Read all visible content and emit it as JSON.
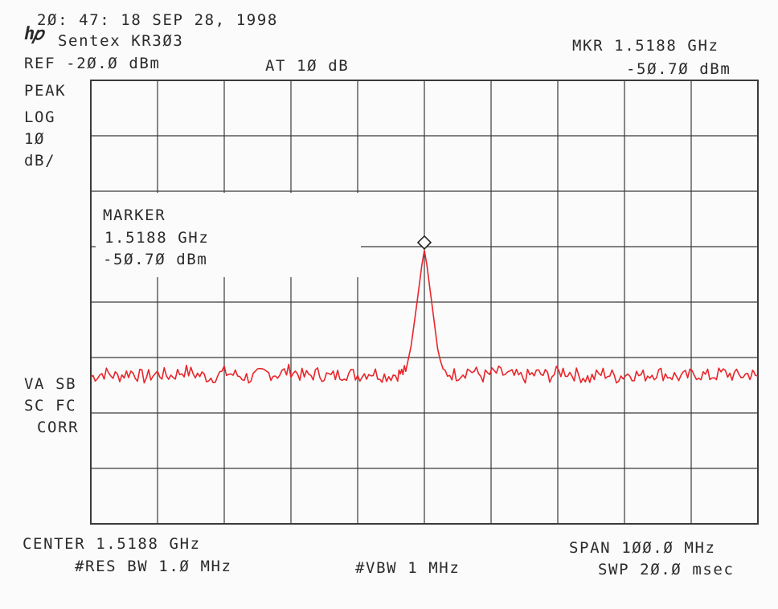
{
  "header": {
    "timestamp": "2Ø: 47: 18 SEP 28, 1998",
    "device_name": "Sentex KR3Ø3",
    "ref_level": "REF -2Ø.Ø dBm",
    "attenuation": "AT 1Ø dB",
    "marker_freq": "MKR 1.5188 GHz",
    "marker_level": "-5Ø.7Ø dBm"
  },
  "left_labels": {
    "detector": "PEAK",
    "scale_type": "LOG",
    "scale_value": "1Ø",
    "scale_unit": "dB/",
    "va_sb": "VA SB",
    "sc_fc": "SC FC",
    "corr": "CORR"
  },
  "marker_box": {
    "title": "MARKER",
    "freq": "1.5188 GHz",
    "level": "-5Ø.7Ø dBm"
  },
  "footer": {
    "center": "CENTER 1.5188 GHz",
    "span": "SPAN 1ØØ.Ø MHz",
    "res_bw": "#RES BW 1.Ø MHz",
    "vbw": "#VBW 1 MHz",
    "sweep": "SWP 2Ø.Ø msec"
  },
  "colors": {
    "trace": "#e8262b",
    "grid": "#3a3a3a",
    "text": "#2a2a2a",
    "background": "#fbfbfb"
  },
  "chart_data": {
    "type": "line",
    "x_unit": "GHz",
    "y_unit": "dBm",
    "xlim": [
      1.4688,
      1.5688
    ],
    "ylim": [
      -100,
      -20
    ],
    "y_scale": "log 10 dB/div",
    "grid": true,
    "divisions": {
      "x": 10,
      "y": 8
    },
    "noise_floor_dbm": -73,
    "series": [
      {
        "points": [
          [
            1.4688,
            -73.5
          ],
          [
            1.4708,
            -72.8
          ],
          [
            1.4728,
            -73.4
          ],
          [
            1.4748,
            -72.6
          ],
          [
            1.4768,
            -73.6
          ],
          [
            1.4788,
            -72.9
          ],
          [
            1.4808,
            -73.3
          ],
          [
            1.4828,
            -72.4
          ],
          [
            1.4848,
            -73.1
          ],
          [
            1.4868,
            -73.6
          ],
          [
            1.4888,
            -72.7
          ],
          [
            1.4908,
            -73.2
          ],
          [
            1.4928,
            -73.7
          ],
          [
            1.4948,
            -72.8
          ],
          [
            1.4968,
            -73.0
          ],
          [
            1.4988,
            -72.3
          ],
          [
            1.5008,
            -73.4
          ],
          [
            1.5028,
            -72.9
          ],
          [
            1.5048,
            -73.5
          ],
          [
            1.5068,
            -72.8
          ],
          [
            1.5088,
            -73.2
          ],
          [
            1.5108,
            -72.6
          ],
          [
            1.5128,
            -73.3
          ],
          [
            1.5148,
            -73.0
          ],
          [
            1.516,
            -72.5
          ],
          [
            1.5168,
            -68.0
          ],
          [
            1.5176,
            -61.0
          ],
          [
            1.5184,
            -53.5
          ],
          [
            1.5188,
            -50.7
          ],
          [
            1.5192,
            -53.5
          ],
          [
            1.52,
            -61.0
          ],
          [
            1.5208,
            -68.5
          ],
          [
            1.5216,
            -72.6
          ],
          [
            1.5236,
            -73.1
          ],
          [
            1.5256,
            -72.2
          ],
          [
            1.5276,
            -73.4
          ],
          [
            1.5296,
            -72.7
          ],
          [
            1.5316,
            -73.2
          ],
          [
            1.5336,
            -73.6
          ],
          [
            1.5356,
            -72.9
          ],
          [
            1.5376,
            -73.3
          ],
          [
            1.5396,
            -72.4
          ],
          [
            1.5416,
            -73.1
          ],
          [
            1.5436,
            -73.8
          ],
          [
            1.5456,
            -72.8
          ],
          [
            1.5476,
            -73.5
          ],
          [
            1.5496,
            -72.9
          ],
          [
            1.5516,
            -73.3
          ],
          [
            1.5536,
            -72.7
          ],
          [
            1.5556,
            -73.2
          ],
          [
            1.5576,
            -73.6
          ],
          [
            1.5596,
            -72.9
          ],
          [
            1.5616,
            -73.4
          ],
          [
            1.5636,
            -72.8
          ],
          [
            1.5656,
            -73.3
          ],
          [
            1.5676,
            -73.0
          ],
          [
            1.5688,
            -73.4
          ]
        ]
      }
    ],
    "marker": {
      "x": 1.5188,
      "y": -50.7
    }
  }
}
